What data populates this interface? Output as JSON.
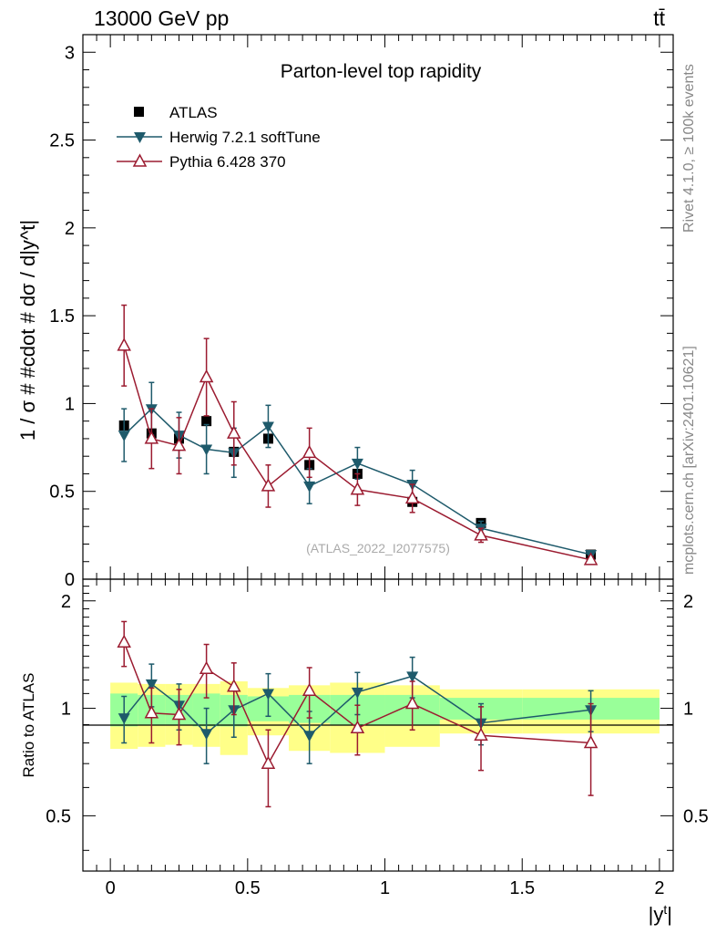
{
  "header": {
    "energy_label": "13000 GeV pp",
    "process_label": "tt̄"
  },
  "side_labels": {
    "rivet": "Rivet 4.1.0, ≥ 100k events",
    "mcplots": "mcplots.cern.ch [arXiv:2401.10621]"
  },
  "chart_data": [
    {
      "type": "scatter",
      "panel": "main",
      "title": "Parton-level top rapidity",
      "ylabel": "1 / σ # #cdot # dσ / d|y^t|",
      "xlabel": "|y^t|",
      "xlim": [
        -0.1,
        2.05
      ],
      "ylim": [
        0,
        3.1
      ],
      "yticks": [
        0.5,
        1,
        1.5,
        2,
        2.5,
        3
      ],
      "ytick_labels": [
        "0.5",
        "1",
        "1.5",
        "2",
        "2.5",
        "3"
      ],
      "watermark": "(ATLAS_2022_I2077575)",
      "legend_position": "top-left",
      "series": [
        {
          "name": "ATLAS",
          "marker": "square",
          "color": "#000000",
          "x": [
            0.05,
            0.15,
            0.25,
            0.35,
            0.45,
            0.575,
            0.725,
            0.9,
            1.1,
            1.35,
            1.75
          ],
          "y": [
            0.875,
            0.83,
            0.8,
            0.9,
            0.725,
            0.8,
            0.65,
            0.6,
            0.44,
            0.32,
            0.14
          ]
        },
        {
          "name": "Herwig 7.2.1 softTune",
          "marker": "triangle-down",
          "color": "#1e5a6b",
          "x": [
            0.05,
            0.15,
            0.25,
            0.35,
            0.45,
            0.575,
            0.725,
            0.9,
            1.1,
            1.35,
            1.75
          ],
          "y": [
            0.82,
            0.97,
            0.82,
            0.74,
            0.72,
            0.87,
            0.53,
            0.66,
            0.54,
            0.29,
            0.14
          ],
          "yerr": [
            0.15,
            0.15,
            0.13,
            0.14,
            0.14,
            0.12,
            0.1,
            0.09,
            0.08,
            0.04,
            0.02
          ]
        },
        {
          "name": "Pythia 6.428 370",
          "marker": "triangle-up-open",
          "color": "#9b1b30",
          "x": [
            0.05,
            0.15,
            0.25,
            0.35,
            0.45,
            0.575,
            0.725,
            0.9,
            1.1,
            1.35,
            1.75
          ],
          "y": [
            1.33,
            0.8,
            0.76,
            1.15,
            0.83,
            0.53,
            0.72,
            0.51,
            0.46,
            0.25,
            0.11
          ],
          "yerr": [
            0.23,
            0.17,
            0.16,
            0.22,
            0.18,
            0.12,
            0.14,
            0.09,
            0.08,
            0.04,
            0.02
          ]
        }
      ]
    },
    {
      "type": "scatter",
      "panel": "ratio",
      "ylabel": "Ratio to ATLAS",
      "xlabel": "|y^t|",
      "xlim": [
        -0.1,
        2.05
      ],
      "ylim": [
        0.35,
        2.3
      ],
      "yticks": [
        0.5,
        1,
        2
      ],
      "ytick_labels": [
        "0.5",
        "1",
        "2"
      ],
      "xticks": [
        0,
        0.5,
        1,
        1.5,
        2
      ],
      "xtick_labels": [
        "0",
        "0.5",
        "1",
        "1.5",
        "2"
      ],
      "bands": {
        "bin_edges": [
          0.0,
          0.1,
          0.2,
          0.3,
          0.4,
          0.5,
          0.65,
          0.8,
          1.0,
          1.2,
          1.5,
          2.0
        ],
        "inner_color": "#99ff99",
        "outer_color": "#ffff88",
        "inner_low": [
          0.89,
          0.9,
          0.9,
          0.89,
          0.89,
          0.92,
          0.91,
          0.9,
          0.9,
          0.93,
          0.93
        ],
        "inner_high": [
          1.1,
          1.09,
          1.09,
          1.1,
          1.09,
          1.08,
          1.09,
          1.09,
          1.09,
          1.07,
          1.07
        ],
        "outer_low": [
          0.77,
          0.78,
          0.79,
          0.78,
          0.74,
          0.84,
          0.76,
          0.75,
          0.78,
          0.85,
          0.85
        ],
        "outer_high": [
          1.18,
          1.17,
          1.17,
          1.17,
          1.19,
          1.14,
          1.16,
          1.18,
          1.16,
          1.13,
          1.13
        ]
      },
      "series": [
        {
          "name": "Herwig 7.2.1 softTune",
          "marker": "triangle-down",
          "color": "#1e5a6b",
          "x": [
            0.05,
            0.15,
            0.25,
            0.35,
            0.45,
            0.575,
            0.725,
            0.9,
            1.1,
            1.35,
            1.75
          ],
          "y": [
            0.94,
            1.17,
            1.02,
            0.85,
            0.99,
            1.1,
            0.84,
            1.11,
            1.23,
            0.91,
            0.99
          ],
          "yerr": [
            0.14,
            0.16,
            0.15,
            0.15,
            0.16,
            0.15,
            0.14,
            0.15,
            0.16,
            0.12,
            0.13
          ]
        },
        {
          "name": "Pythia 6.428 370",
          "marker": "triangle-up-open",
          "color": "#9b1b30",
          "x": [
            0.05,
            0.15,
            0.25,
            0.35,
            0.45,
            0.575,
            0.725,
            0.9,
            1.1,
            1.35,
            1.75
          ],
          "y": [
            1.53,
            0.97,
            0.96,
            1.29,
            1.15,
            0.7,
            1.12,
            0.88,
            1.03,
            0.84,
            0.8
          ],
          "yerr": [
            0.22,
            0.17,
            0.17,
            0.22,
            0.19,
            0.17,
            0.18,
            0.14,
            0.16,
            0.17,
            0.23
          ]
        }
      ]
    }
  ]
}
